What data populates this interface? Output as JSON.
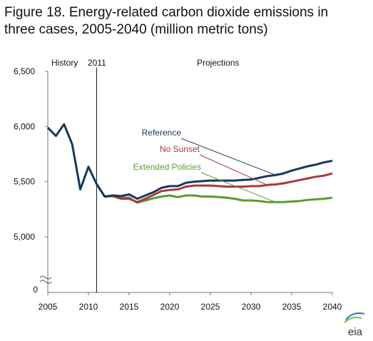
{
  "chart_data": {
    "type": "line",
    "title_line1": "Figure 18. Energy-related carbon dioxide emissions in",
    "title_line2": "three cases, 2005-2040 (million metric tons)",
    "annotations": {
      "history": "History",
      "divider_year": "2011",
      "projections": "Projections"
    },
    "x_ticks": [
      "2005",
      "2010",
      "2015",
      "2020",
      "2025",
      "2030",
      "2035",
      "2040"
    ],
    "y_ticks": [
      "6,500",
      "6,000",
      "5,500",
      "5,000"
    ],
    "y_zero_label": "0",
    "ylim": [
      4500,
      6500
    ],
    "xlim": [
      2005,
      2040
    ],
    "divider_x": 2011,
    "grid": false,
    "history": {
      "x": [
        2005,
        2006,
        2007,
        2008,
        2009,
        2010,
        2011
      ],
      "y": [
        5990,
        5915,
        6020,
        5840,
        5430,
        5635,
        5480
      ]
    },
    "series": [
      {
        "name": "Reference",
        "color": "#17375e",
        "x": [
          2011,
          2012,
          2013,
          2014,
          2015,
          2016,
          2017,
          2018,
          2019,
          2020,
          2021,
          2022,
          2023,
          2024,
          2025,
          2026,
          2027,
          2028,
          2029,
          2030,
          2031,
          2032,
          2033,
          2034,
          2035,
          2036,
          2037,
          2038,
          2039,
          2040
        ],
        "y": [
          5480,
          5365,
          5375,
          5370,
          5385,
          5345,
          5375,
          5405,
          5445,
          5460,
          5460,
          5490,
          5500,
          5505,
          5510,
          5510,
          5510,
          5510,
          5515,
          5520,
          5535,
          5550,
          5560,
          5575,
          5600,
          5620,
          5640,
          5655,
          5675,
          5690
        ]
      },
      {
        "name": "No Sunset",
        "color": "#a6383e",
        "x": [
          2011,
          2012,
          2013,
          2014,
          2015,
          2016,
          2017,
          2018,
          2019,
          2020,
          2021,
          2022,
          2023,
          2024,
          2025,
          2026,
          2027,
          2028,
          2029,
          2030,
          2031,
          2032,
          2033,
          2034,
          2035,
          2036,
          2037,
          2038,
          2039,
          2040
        ],
        "y": [
          5480,
          5365,
          5370,
          5345,
          5345,
          5315,
          5345,
          5380,
          5415,
          5425,
          5430,
          5455,
          5465,
          5465,
          5465,
          5460,
          5455,
          5455,
          5455,
          5460,
          5460,
          5470,
          5475,
          5485,
          5500,
          5515,
          5530,
          5545,
          5555,
          5575
        ]
      },
      {
        "name": "Extended Policies",
        "color": "#5f9a2e",
        "x": [
          2011,
          2012,
          2013,
          2014,
          2015,
          2016,
          2017,
          2018,
          2019,
          2020,
          2021,
          2022,
          2023,
          2024,
          2025,
          2026,
          2027,
          2028,
          2029,
          2030,
          2031,
          2032,
          2033,
          2034,
          2035,
          2036,
          2037,
          2038,
          2039,
          2040
        ],
        "y": [
          5480,
          5365,
          5370,
          5355,
          5355,
          5310,
          5330,
          5350,
          5365,
          5375,
          5360,
          5375,
          5375,
          5365,
          5365,
          5360,
          5355,
          5345,
          5330,
          5330,
          5325,
          5315,
          5315,
          5315,
          5320,
          5325,
          5335,
          5340,
          5345,
          5355
        ]
      }
    ],
    "legend": [
      {
        "name": "Reference",
        "color": "#17375e",
        "leader_to": [
          2033,
          5560
        ]
      },
      {
        "name": "No Sunset",
        "color": "#a6383e",
        "leader_to": [
          2032,
          5470
        ]
      },
      {
        "name": "Extended Policies",
        "color": "#5f9a2e",
        "leader_to": [
          2033,
          5315
        ]
      }
    ],
    "logo_text": "eia",
    "logo_colors": [
      "#2a7bbf",
      "#7cc242"
    ]
  }
}
